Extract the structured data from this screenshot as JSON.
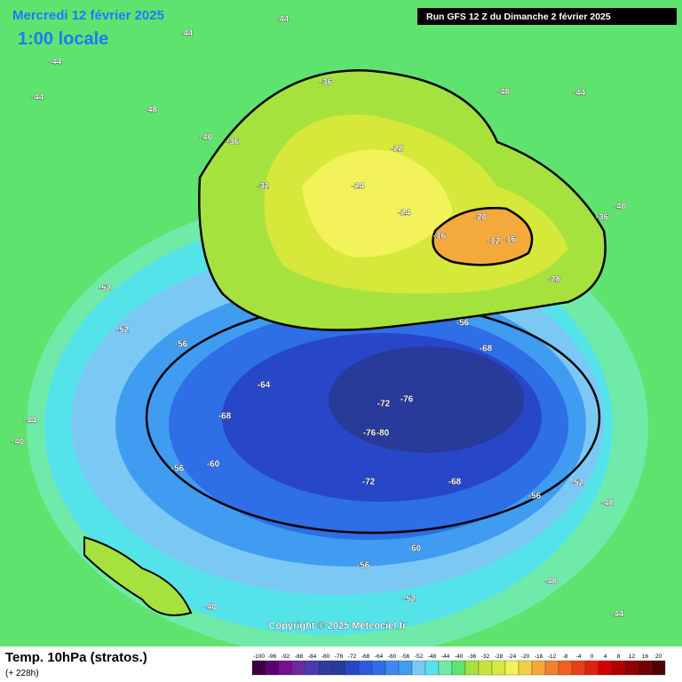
{
  "header": {
    "date": "Mercredi 12 février 2025",
    "time": "1:00 locale",
    "run": "Run GFS 12 Z du Dimanche 2 février 2025"
  },
  "copyright": "Copyright © 2025 Meteociel.fr",
  "footer": {
    "title": "Temp. 10hPa (stratos.)",
    "lead": "(+ 228h)"
  },
  "scale": {
    "values": [
      -100,
      -96,
      -92,
      -88,
      -84,
      -80,
      -76,
      -72,
      -68,
      -64,
      -60,
      -56,
      -52,
      -48,
      -44,
      -40,
      -36,
      -32,
      -28,
      -24,
      -20,
      -16,
      -12,
      -8,
      -4,
      0,
      4,
      8,
      12,
      16,
      20
    ]
  },
  "contour_labels": [
    -44,
    -44,
    -44,
    -44,
    -48,
    -40,
    -36,
    -36,
    -32,
    -28,
    -24,
    -24,
    -20,
    -16,
    -12,
    -16,
    -28,
    -36,
    -40,
    -44,
    -48,
    -52,
    -52,
    -56,
    -56,
    -64,
    -68,
    -68,
    -72,
    -76,
    -80,
    -76,
    -72,
    -68,
    -60,
    -56,
    -60,
    -56,
    -52,
    -48,
    -44,
    -40,
    -40,
    -44,
    -48,
    -52,
    -56
  ]
}
